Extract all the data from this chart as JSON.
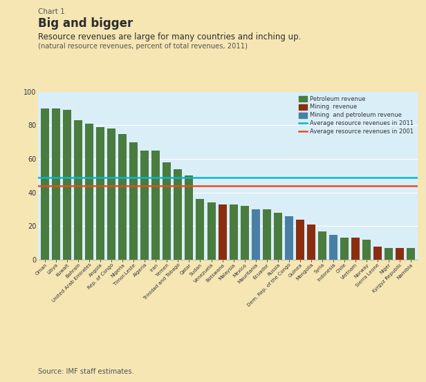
{
  "countries": [
    "Oman",
    "Libya",
    "Kuwait",
    "Bahrain",
    "United Arab Emirates",
    "Angola",
    "Rep. of Congo",
    "Nigeria",
    "Timor-Leste",
    "Algeria",
    "Iran",
    "Yemen",
    "Trinidad and Tobago",
    "Qatar",
    "Sudan",
    "Venezuela",
    "Botswana",
    "Malaysia",
    "Mexico",
    "Mauritania",
    "Ecuador",
    "Russia",
    "Dem. Rep. of the Congo",
    "Guinea",
    "Mongolia",
    "Syria",
    "Indonesia",
    "Chile",
    "Vietnam",
    "Norway",
    "Sierra Leone",
    "Niger",
    "Kyrgyz Republic",
    "Namibia"
  ],
  "values": [
    90,
    90,
    89,
    83,
    81,
    79,
    78,
    75,
    70,
    65,
    65,
    58,
    54,
    50,
    36,
    34,
    33,
    33,
    32,
    30,
    30,
    28,
    26,
    24,
    21,
    17,
    15,
    13,
    13,
    12,
    8,
    7,
    7,
    7
  ],
  "bar_types": [
    "P",
    "P",
    "P",
    "P",
    "P",
    "P",
    "P",
    "P",
    "P",
    "P",
    "P",
    "P",
    "P",
    "P",
    "P",
    "P",
    "M",
    "P",
    "P",
    "B",
    "P",
    "P",
    "B",
    "M",
    "M",
    "P",
    "B",
    "P",
    "M",
    "P",
    "M",
    "P",
    "M",
    "P"
  ],
  "avg_2011": 49,
  "avg_2001": 44,
  "color_petroleum": "#4a7c3f",
  "color_mining": "#8b2e10",
  "color_mixed": "#4a7fa5",
  "color_avg2011": "#00b8d0",
  "color_avg2001": "#e05020",
  "bg_outer": "#f5e6b4",
  "bg_chart": "#daeef8",
  "title_label": "Chart 1",
  "title_bold": "Big and bigger",
  "subtitle": "Resource revenues are large for many countries and inching up.",
  "subtitle2": "(natural resource revenues, percent of total revenues, 2011)",
  "source": "Source: IMF staff estimates.",
  "ylim": [
    0,
    100
  ],
  "legend_labels": [
    "Petroleum revenue",
    "Mining  revenue",
    "Mining  and petroleum revenue",
    "Average resource revenues in 2011",
    "Average resource revenues in 2001"
  ]
}
